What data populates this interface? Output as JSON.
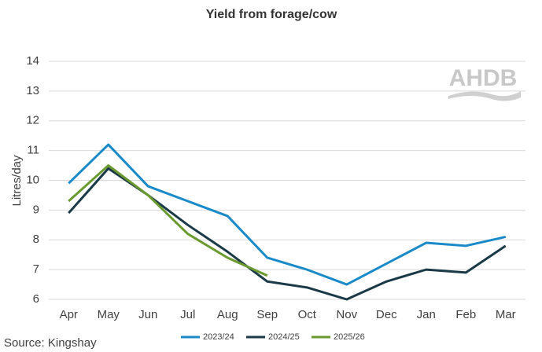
{
  "chart_data": {
    "type": "line",
    "title": "Yield from forage/cow",
    "y_label": "Litres/day",
    "source": "Source: Kingshay",
    "logo": "AHDB",
    "categories": [
      "Apr",
      "May",
      "Jun",
      "Jul",
      "Aug",
      "Sep",
      "Oct",
      "Nov",
      "Dec",
      "Jan",
      "Feb",
      "Mar"
    ],
    "series": [
      {
        "name": "2023/24",
        "color": "#1a8ac9",
        "values": [
          9.9,
          11.2,
          9.8,
          9.3,
          8.8,
          7.4,
          7.0,
          6.5,
          7.2,
          7.9,
          7.8,
          8.1
        ]
      },
      {
        "name": "2024/25",
        "color": "#1b3a47",
        "values": [
          8.9,
          10.4,
          9.5,
          8.5,
          7.6,
          6.6,
          6.4,
          6.0,
          6.6,
          7.0,
          6.9,
          7.8
        ]
      },
      {
        "name": "2025/26",
        "color": "#6a9a2f",
        "values": [
          9.3,
          10.5,
          9.5,
          8.2,
          7.4,
          6.8,
          null,
          null,
          null,
          null,
          null,
          null
        ]
      }
    ],
    "ylim": [
      6,
      14
    ],
    "yticks": [
      6,
      7,
      8,
      9,
      10,
      11,
      12,
      13,
      14
    ],
    "grid": true,
    "legend": "bottom"
  }
}
